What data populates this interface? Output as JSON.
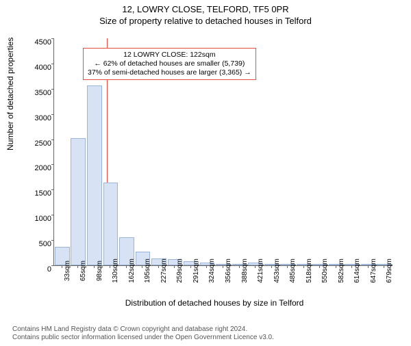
{
  "title_line1": "12, LOWRY CLOSE, TELFORD, TF5 0PR",
  "title_line2": "Size of property relative to detached houses in Telford",
  "chart": {
    "type": "bar",
    "ylabel": "Number of detached properties",
    "xlabel": "Distribution of detached houses by size in Telford",
    "ylim_max": 4500,
    "ytick_step": 500,
    "yticks": [
      0,
      500,
      1000,
      1500,
      2000,
      2500,
      3000,
      3500,
      4000,
      4500
    ],
    "x_categories": [
      "33sqm",
      "65sqm",
      "98sqm",
      "130sqm",
      "162sqm",
      "195sqm",
      "227sqm",
      "259sqm",
      "291sqm",
      "324sqm",
      "356sqm",
      "388sqm",
      "421sqm",
      "453sqm",
      "485sqm",
      "518sqm",
      "550sqm",
      "582sqm",
      "614sqm",
      "647sqm",
      "679sqm"
    ],
    "values": [
      370,
      2520,
      3560,
      1640,
      560,
      270,
      130,
      120,
      80,
      60,
      25,
      30,
      50,
      10,
      5,
      5,
      0,
      5,
      0,
      0,
      5
    ],
    "bar_fill": "#d7e3f4",
    "bar_stroke": "#9bb4d8",
    "axis_color": "#666666",
    "background_color": "#ffffff",
    "reference_line": {
      "x_value_sqm": 122,
      "color": "#e74c3c"
    },
    "annotation": {
      "line1": "12 LOWRY CLOSE: 122sqm",
      "line2": "← 62% of detached houses are smaller (5,739)",
      "line3": "37% of semi-detached houses are larger (3,365) →",
      "border_color": "#e74c3c",
      "background": "#ffffff",
      "fontsize": 10.5
    }
  },
  "footer": {
    "line1": "Contains HM Land Registry data © Crown copyright and database right 2024.",
    "line2": "Contains public sector information licensed under the Open Government Licence v3.0."
  }
}
